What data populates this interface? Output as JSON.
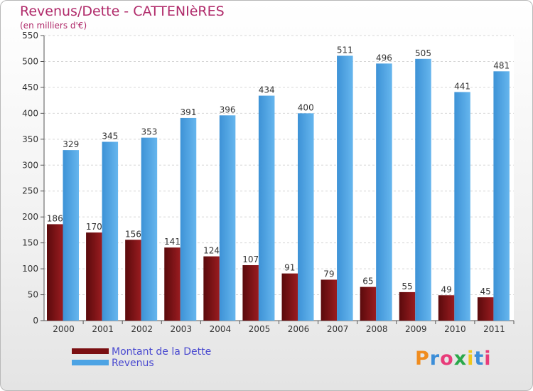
{
  "header": {
    "title": "Revenus/Dette - CATTENIèRES",
    "subtitle": "(en milliers d'€)"
  },
  "legend": {
    "items": [
      {
        "label": "Montant de la Dette",
        "color": "#7a0f12"
      },
      {
        "label": "Revenus",
        "color": "#4ca3e4"
      }
    ]
  },
  "logo": {
    "text": "Proxiti",
    "colors": [
      "#f08c1e",
      "#3c8ed8",
      "#e83c7a",
      "#2aa84a",
      "#f0c81e",
      "#3c8ed8",
      "#e83c7a"
    ]
  },
  "chart_data": {
    "type": "bar",
    "title": "Revenus/Dette - CATTENIèRES",
    "subtitle": "(en milliers d'€)",
    "categories": [
      "2000",
      "2001",
      "2002",
      "2003",
      "2004",
      "2005",
      "2006",
      "2007",
      "2008",
      "2009",
      "2010",
      "2011"
    ],
    "series": [
      {
        "name": "Montant de la Dette",
        "color": "#7a0f12",
        "values": [
          186,
          170,
          156,
          141,
          124,
          107,
          91,
          79,
          65,
          55,
          49,
          45
        ]
      },
      {
        "name": "Revenus",
        "color": "#4ca3e4",
        "values": [
          329,
          345,
          353,
          391,
          396,
          434,
          400,
          511,
          496,
          505,
          441,
          481
        ]
      }
    ],
    "ylim": [
      0,
      550
    ],
    "yticks": [
      0,
      50,
      100,
      150,
      200,
      250,
      300,
      350,
      400,
      450,
      500,
      550
    ],
    "grid": true,
    "legend_position": "bottom-left"
  }
}
